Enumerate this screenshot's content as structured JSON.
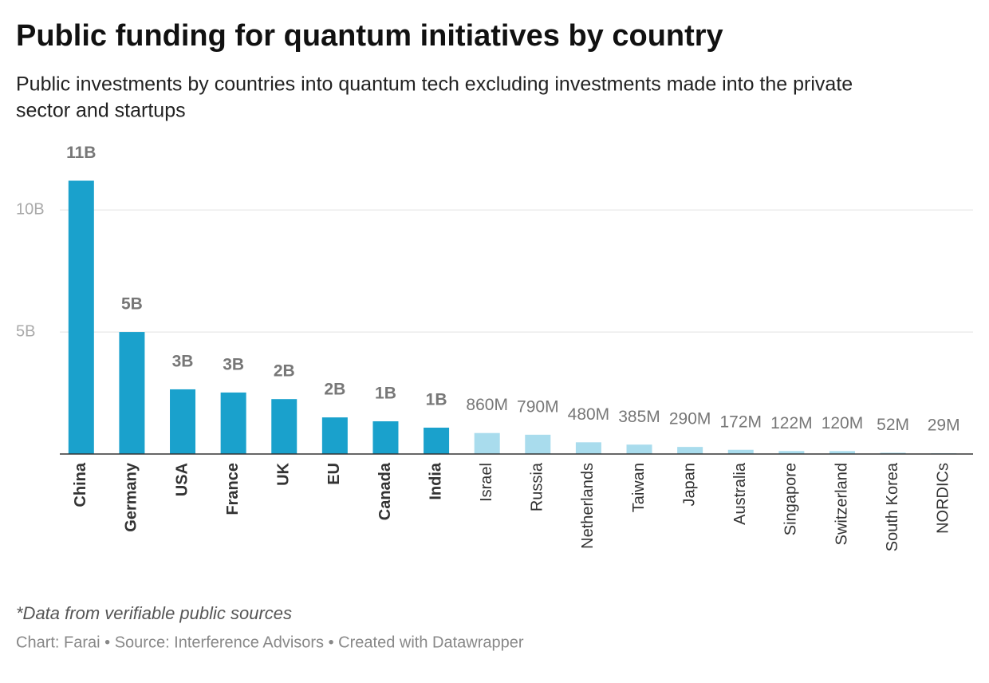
{
  "chart_data": {
    "type": "bar",
    "title": "Public funding for quantum initiatives by country",
    "subtitle": [
      "Public investments by countries into quantum tech excluding investments made into the private",
      "sector and startups"
    ],
    "categories": [
      "China",
      "Germany",
      "USA",
      "France",
      "UK",
      "EU",
      "Canada",
      "India",
      "Israel",
      "Russia",
      "Netherlands",
      "Taiwan",
      "Japan",
      "Australia",
      "Singapore",
      "Switzerland",
      "South Korea",
      "NORDICs"
    ],
    "values": [
      11200000000,
      5000000000,
      2650000000,
      2520000000,
      2250000000,
      1500000000,
      1340000000,
      1080000000,
      860000000,
      790000000,
      480000000,
      385000000,
      290000000,
      172000000,
      122000000,
      120000000,
      52000000,
      29000000
    ],
    "value_labels": [
      "11B",
      "5B",
      "3B",
      "3B",
      "2B",
      "2B",
      "1B",
      "1B",
      "860M",
      "790M",
      "480M",
      "385M",
      "290M",
      "172M",
      "122M",
      "120M",
      "52M",
      "29M"
    ],
    "colors": [
      "#1aa1cc",
      "#1aa1cc",
      "#1aa1cc",
      "#1aa1cc",
      "#1aa1cc",
      "#1aa1cc",
      "#1aa1cc",
      "#1aa1cc",
      "#a9dced",
      "#a9dced",
      "#a9dced",
      "#a9dced",
      "#a9dced",
      "#a9dced",
      "#a9dced",
      "#a9dced",
      "#a9dced",
      "#a9dced"
    ],
    "ylim": [
      0,
      12000000000
    ],
    "yticks": [
      {
        "value": 5000000000,
        "label": "5B"
      },
      {
        "value": 10000000000,
        "label": "10B"
      }
    ],
    "grid": true,
    "notes": "*Data from verifiable public sources",
    "credit": "Chart: Farai • Source: Interference Advisors • Created with Datawrapper"
  }
}
